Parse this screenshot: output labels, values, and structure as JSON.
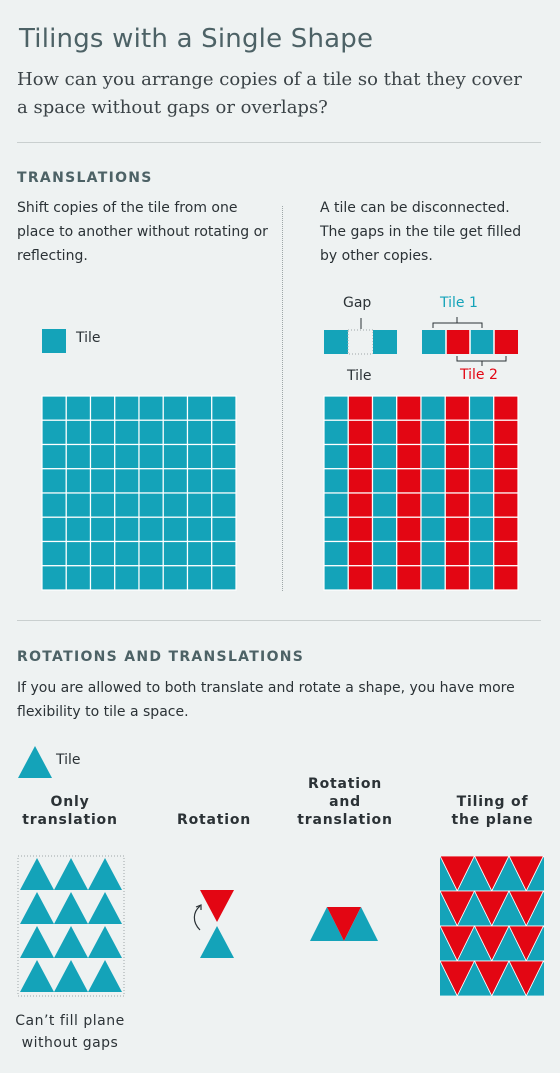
{
  "header": {
    "title": "Tilings with a Single Shape",
    "subtitle": "How can you arrange copies of a tile so that they cover a space without gaps or overlaps?"
  },
  "translations": {
    "heading": "TRANSLATIONS",
    "left_desc": "Shift copies of the tile from one place to another without rotating or reflecting.",
    "right_desc": "A tile can be disconnected. The gaps in the tile get filled by other copies.",
    "tile_label": "Tile",
    "gap_label": "Gap",
    "tile1_label": "Tile 1",
    "tile2_label": "Tile 2",
    "tile_label_right": "Tile"
  },
  "rotations": {
    "heading": "ROTATIONS AND TRANSLATIONS",
    "desc": "If you are allowed to both translate and rotate a shape, you have more flexibility to tile a space.",
    "tile_label": "Tile",
    "col1": "Only translation",
    "col2": "Rotation",
    "col3": "Rotation and translation",
    "col4": "Tiling of the plane",
    "footnote": "Can’t fill plane without gaps"
  },
  "colors": {
    "teal": "#14a3b9",
    "red": "#e30613",
    "background": "#eef2f2",
    "heading": "#4d6266"
  }
}
